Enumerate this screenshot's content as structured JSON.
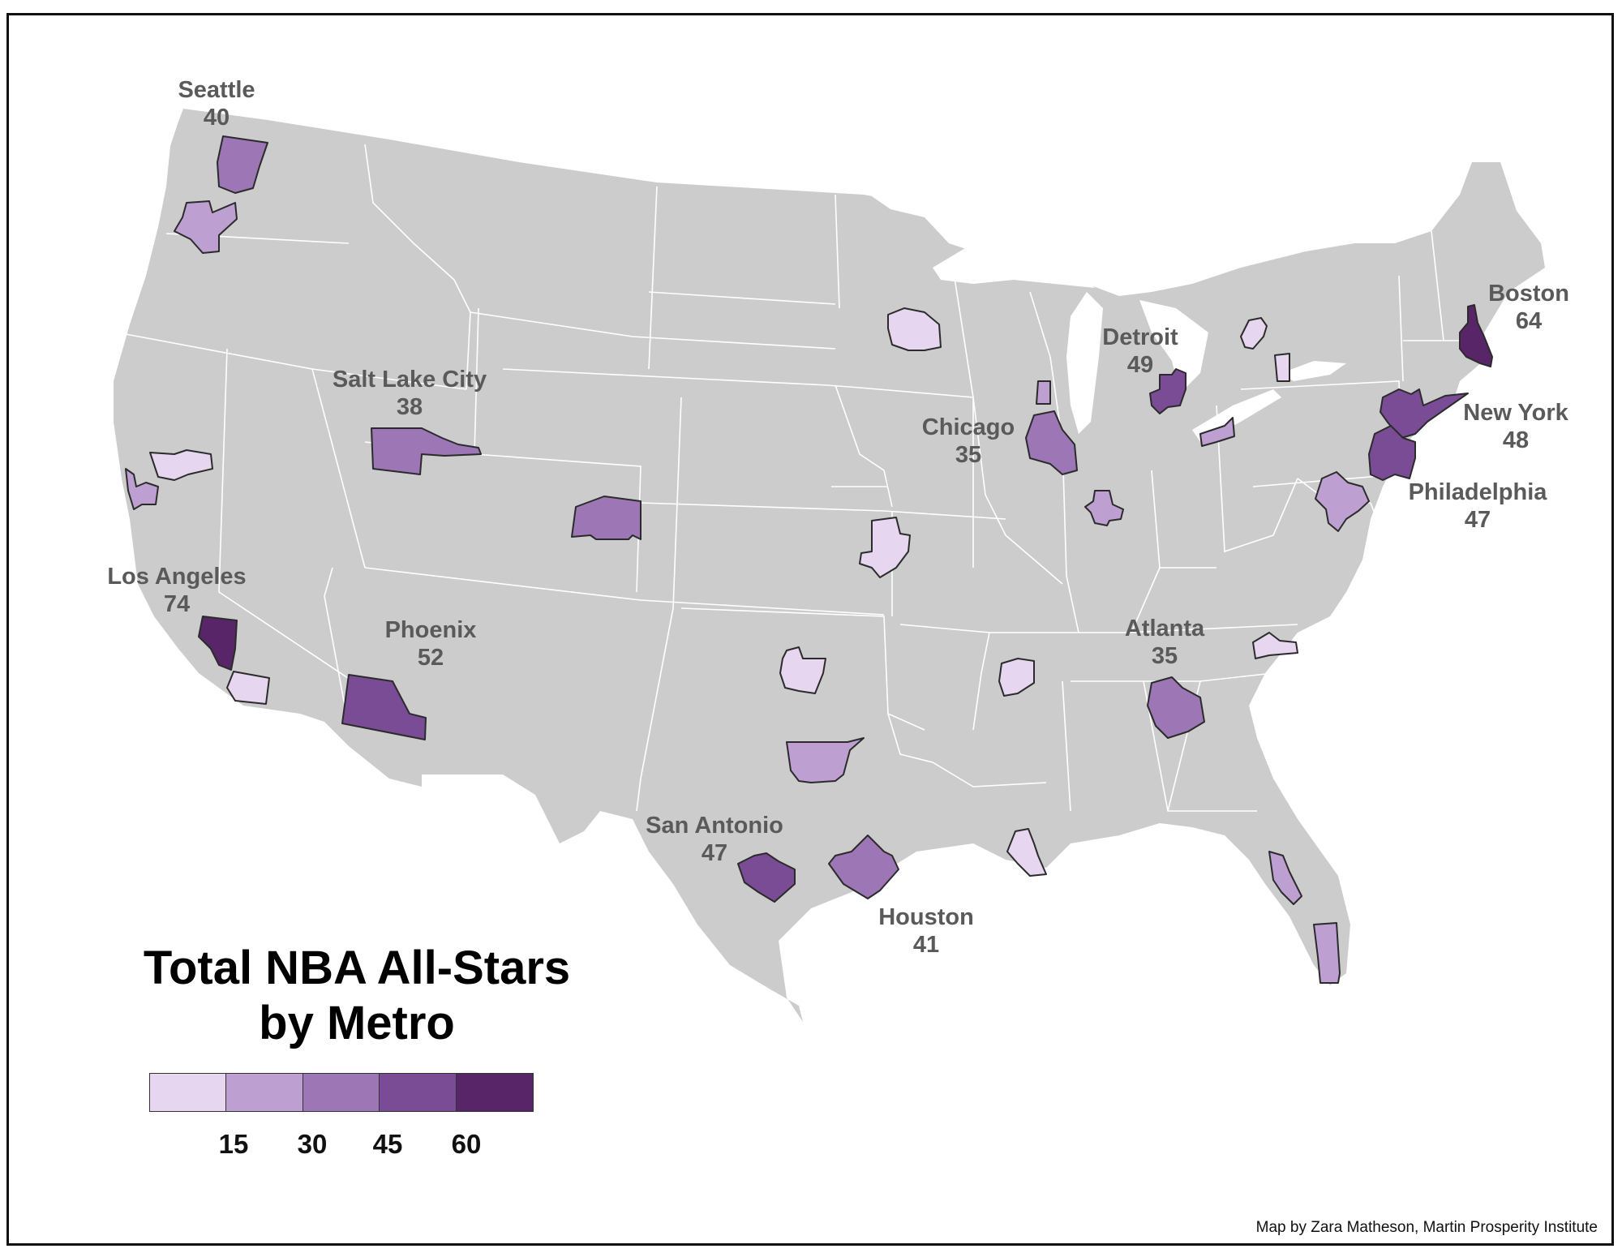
{
  "title": {
    "line1": "Total NBA All-Stars",
    "line2": "by Metro"
  },
  "credit": "Map by Zara Matheson, Martin Prosperity Institute",
  "colors": {
    "land": "#cccccc",
    "state_borders": "#ffffff",
    "class_1": "#e6d6ef",
    "class_2": "#bd9fd2",
    "class_3": "#9c76b5",
    "class_4": "#7a4c95",
    "class_5": "#582668",
    "label_text": "#5a5a5a"
  },
  "legend": {
    "swatches": [
      "#e6d6ef",
      "#bd9fd2",
      "#9c76b5",
      "#7a4c95",
      "#582668"
    ],
    "breaks": [
      "15",
      "30",
      "45",
      "60"
    ]
  },
  "labeled_metros": [
    {
      "name": "Seattle",
      "value": "40"
    },
    {
      "name": "Salt Lake City",
      "value": "38"
    },
    {
      "name": "Los Angeles",
      "value": "74"
    },
    {
      "name": "Phoenix",
      "value": "52"
    },
    {
      "name": "San Antonio",
      "value": "47"
    },
    {
      "name": "Houston",
      "value": "41"
    },
    {
      "name": "Chicago",
      "value": "35"
    },
    {
      "name": "Detroit",
      "value": "49"
    },
    {
      "name": "Atlanta",
      "value": "35"
    },
    {
      "name": "Boston",
      "value": "64"
    },
    {
      "name": "New York",
      "value": "48"
    },
    {
      "name": "Philadelphia",
      "value": "47"
    }
  ]
}
